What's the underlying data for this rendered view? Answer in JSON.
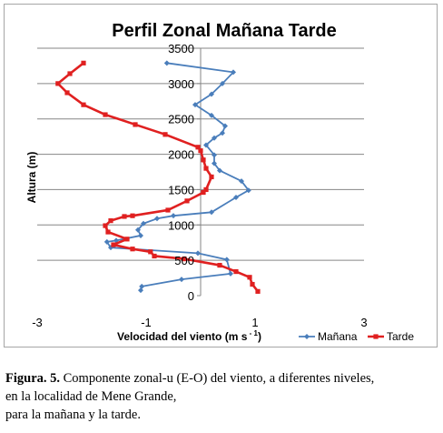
{
  "chart_data": {
    "type": "line",
    "title": "Perfil Zonal Mañana Tarde",
    "xlabel": "Velocidad del viento (m s",
    "xlabel_sup": "- 1",
    "xlabel_end": ")",
    "ylabel": "Altura (m)",
    "xlim": [
      -3,
      3
    ],
    "ylim": [
      0,
      3500
    ],
    "x_ticks": [
      -3,
      -1,
      1,
      3
    ],
    "x_tick_labels": [
      "-3",
      "-1",
      "1",
      "3"
    ],
    "y_ticks": [
      0,
      500,
      1000,
      1500,
      2000,
      2500,
      3000,
      3500
    ],
    "y_tick_labels": [
      "0",
      "500",
      "1000",
      "1500",
      "2000",
      "2500",
      "3000",
      "3500"
    ],
    "grid": "horizontal",
    "legend_position": "bottom-right",
    "series": [
      {
        "name": "Mañana",
        "color": "#4a7ebb",
        "marker": "diamond",
        "points": [
          [
            -1.1,
            75
          ],
          [
            -1.08,
            130
          ],
          [
            -0.35,
            230
          ],
          [
            0.55,
            310
          ],
          [
            0.48,
            510
          ],
          [
            -0.05,
            600
          ],
          [
            -1.65,
            680
          ],
          [
            -1.72,
            760
          ],
          [
            -1.55,
            780
          ],
          [
            -1.1,
            850
          ],
          [
            -1.15,
            930
          ],
          [
            -1.05,
            1020
          ],
          [
            -0.8,
            1090
          ],
          [
            -0.5,
            1130
          ],
          [
            0.2,
            1180
          ],
          [
            0.65,
            1390
          ],
          [
            0.88,
            1490
          ],
          [
            0.75,
            1620
          ],
          [
            0.35,
            1770
          ],
          [
            0.25,
            1870
          ],
          [
            0.25,
            1990
          ],
          [
            0.1,
            2130
          ],
          [
            0.25,
            2230
          ],
          [
            0.4,
            2300
          ],
          [
            0.45,
            2400
          ],
          [
            0.2,
            2550
          ],
          [
            -0.1,
            2700
          ],
          [
            0.2,
            2850
          ],
          [
            0.4,
            3000
          ],
          [
            0.6,
            3160
          ],
          [
            -0.62,
            3290
          ]
        ]
      },
      {
        "name": "Tarde",
        "color": "#e02020",
        "marker": "square",
        "points": [
          [
            1.05,
            60
          ],
          [
            0.95,
            160
          ],
          [
            0.9,
            260
          ],
          [
            0.65,
            340
          ],
          [
            0.35,
            430
          ],
          [
            -0.3,
            520
          ],
          [
            -0.85,
            560
          ],
          [
            -0.92,
            620
          ],
          [
            -1.25,
            660
          ],
          [
            -1.6,
            720
          ],
          [
            -1.35,
            800
          ],
          [
            -1.7,
            900
          ],
          [
            -1.75,
            990
          ],
          [
            -1.65,
            1060
          ],
          [
            -1.4,
            1120
          ],
          [
            -1.25,
            1130
          ],
          [
            -0.6,
            1210
          ],
          [
            -0.25,
            1340
          ],
          [
            0.05,
            1460
          ],
          [
            0.1,
            1500
          ],
          [
            0.2,
            1680
          ],
          [
            0.1,
            1800
          ],
          [
            0.05,
            1920
          ],
          [
            0.0,
            2050
          ],
          [
            -0.05,
            2100
          ],
          [
            -0.65,
            2280
          ],
          [
            -1.2,
            2420
          ],
          [
            -1.75,
            2560
          ],
          [
            -2.15,
            2700
          ],
          [
            -2.45,
            2870
          ],
          [
            -2.62,
            3000
          ],
          [
            -2.4,
            3140
          ],
          [
            -2.15,
            3290
          ]
        ]
      }
    ]
  },
  "caption": {
    "label": "Figura. 5.",
    "line1": " Componente zonal-u (E-O) del viento, a diferentes niveles,",
    "line2": "en la localidad de Mene Grande,",
    "line3": "para la mañana y la tarde."
  }
}
